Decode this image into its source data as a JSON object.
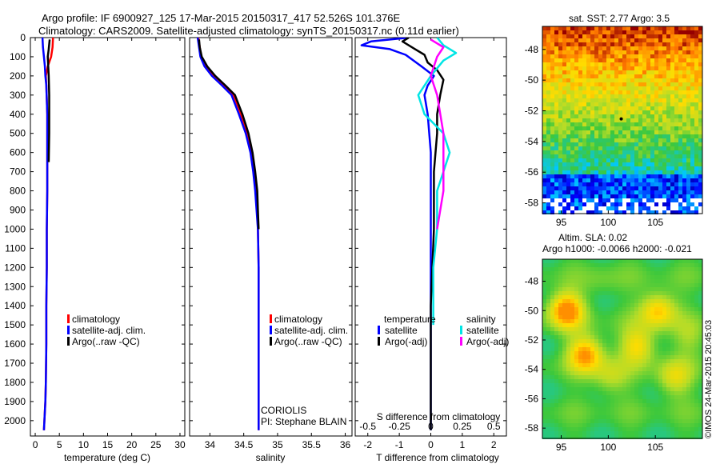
{
  "header": {
    "line1": "Argo profile: IF 6900927_125 17-Mar-2015 20150317_417 52.526S 101.376E",
    "line2": "Climatology: CARS2009. Satellite-adjusted climatology: synTS_20150317.nc (0.11d earlier)"
  },
  "colors": {
    "climatology": "#ff0000",
    "satellite_clim": "#0000ff",
    "argo": "#000000",
    "satellite_sal": "#00e5e5",
    "argo_sal": "#ff00ff"
  },
  "chart_data": [
    {
      "type": "line",
      "name": "temperature-profile",
      "xlabel": "temperature (deg C)",
      "xlim": [
        -1,
        31
      ],
      "xticks": [
        0,
        5,
        10,
        15,
        20,
        25,
        30
      ],
      "ylim": [
        2080,
        0
      ],
      "yticks": [
        0,
        100,
        200,
        300,
        400,
        500,
        600,
        700,
        800,
        900,
        1000,
        1100,
        1200,
        1300,
        1400,
        1500,
        1600,
        1700,
        1800,
        1900,
        2000
      ],
      "legend": [
        "climatology",
        "satellite-adj. clim.",
        "Argo(..raw -QC)"
      ],
      "series": [
        {
          "name": "climatology",
          "color": "#ff0000",
          "x": [
            3.7,
            3.6,
            3.3,
            2.6,
            2.2,
            2.3,
            2.5,
            2.5,
            2.5,
            2.4,
            2.4,
            2.3,
            2.3,
            2.2,
            2.1,
            2.0,
            1.9,
            1.8
          ],
          "y": [
            0,
            50,
            100,
            150,
            200,
            250,
            400,
            600,
            800,
            1000,
            1200,
            1400,
            1600,
            1800,
            1900,
            1950,
            2000,
            2050
          ]
        },
        {
          "name": "satellite-adj. clim.",
          "color": "#0000ff",
          "x": [
            1.5,
            1.6,
            1.8,
            2.0,
            2.1,
            2.3,
            2.5,
            2.5,
            2.5,
            2.4,
            2.4,
            2.3,
            2.3,
            2.2,
            2.1,
            2.0,
            1.9,
            1.8
          ],
          "y": [
            0,
            50,
            100,
            150,
            200,
            250,
            400,
            600,
            800,
            1000,
            1200,
            1400,
            1600,
            1800,
            1900,
            1950,
            2000,
            2050
          ]
        },
        {
          "name": "Argo(..raw -QC)",
          "color": "#000000",
          "x": [
            3.0,
            2.8,
            2.6,
            2.7,
            2.8,
            2.9,
            2.9,
            2.8
          ],
          "y": [
            10,
            60,
            100,
            150,
            200,
            300,
            500,
            650
          ]
        }
      ]
    },
    {
      "type": "line",
      "name": "salinity-profile",
      "xlabel": "salinity",
      "xlim": [
        33.7,
        36.1
      ],
      "xticks": [
        34,
        34.5,
        35,
        35.5,
        36
      ],
      "xtick_labels": [
        "34",
        "34.5",
        "35",
        "35.5",
        "36"
      ],
      "ylim": [
        2080,
        0
      ],
      "legend": [
        "climatology",
        "satellite-adj. clim.",
        "Argo(..raw -QC)"
      ],
      "annotation": [
        "CORIOLIS",
        "PI: Stephane BLAIN"
      ],
      "series": [
        {
          "name": "climatology",
          "color": "#ff0000",
          "x": [
            33.83,
            33.85,
            33.87,
            33.93,
            34.05,
            34.2,
            34.35,
            34.46,
            34.55,
            34.61,
            34.65,
            34.68,
            34.7,
            34.71,
            34.72,
            34.72,
            34.72,
            34.72,
            34.72
          ],
          "y": [
            0,
            50,
            100,
            150,
            200,
            250,
            300,
            400,
            500,
            600,
            700,
            800,
            900,
            1000,
            1200,
            1400,
            1600,
            1800,
            2050
          ]
        },
        {
          "name": "satellite-adj. clim.",
          "color": "#0000ff",
          "x": [
            33.82,
            33.84,
            33.86,
            33.92,
            34.03,
            34.18,
            34.32,
            34.43,
            34.53,
            34.6,
            34.64,
            34.67,
            34.69,
            34.71,
            34.72,
            34.72,
            34.72,
            34.72,
            34.72
          ],
          "y": [
            0,
            50,
            100,
            150,
            200,
            250,
            300,
            400,
            500,
            600,
            700,
            800,
            900,
            1000,
            1200,
            1400,
            1600,
            1800,
            2050
          ]
        },
        {
          "name": "Argo(..raw -QC)",
          "color": "#000000",
          "x": [
            33.84,
            33.85,
            33.88,
            33.96,
            34.08,
            34.23,
            34.37,
            34.48,
            34.57,
            34.63,
            34.67,
            34.7,
            34.71,
            34.72
          ],
          "y": [
            10,
            50,
            100,
            150,
            200,
            250,
            300,
            400,
            500,
            600,
            700,
            800,
            900,
            1000
          ]
        }
      ]
    },
    {
      "type": "line",
      "name": "difference-profile",
      "xlabel": "T difference from climatology",
      "xlabel_top": "S difference from climatology",
      "xlim": [
        -2.4,
        2.4
      ],
      "xticks": [
        -2,
        -1,
        0,
        1,
        2
      ],
      "xticks_s": [
        "-0.5",
        "-0.25",
        "0",
        "0.25",
        "0.5"
      ],
      "ylim": [
        2080,
        0
      ],
      "legend_temperature": [
        "temperature",
        "satellite",
        "Argo(-adj)"
      ],
      "legend_salinity": [
        "salinity",
        "satellite",
        "Argo(-adj)"
      ],
      "series": [
        {
          "name": "temperature satellite",
          "color": "#0000ff",
          "x": [
            -0.7,
            -1.9,
            -2.2,
            -1.3,
            -0.8,
            -0.3,
            0.1,
            -0.1,
            -0.2,
            -0.1,
            0.0,
            0.0,
            0.0,
            0.0,
            0.0
          ],
          "y": [
            0,
            20,
            40,
            60,
            90,
            150,
            200,
            250,
            300,
            400,
            600,
            1000,
            1400,
            1800,
            2050
          ]
        },
        {
          "name": "temperature Argo(-adj)",
          "color": "#000000",
          "x": [
            -0.7,
            -0.9,
            -0.5,
            -0.2,
            -0.1,
            0.2,
            0.4,
            0.3,
            0.2,
            0.2,
            0.1,
            0.1,
            0.0,
            0.0,
            0.0
          ],
          "y": [
            0,
            20,
            60,
            90,
            130,
            170,
            220,
            300,
            400,
            500,
            700,
            1000,
            1400,
            1800,
            2050
          ]
        },
        {
          "name": "salinity satellite",
          "color": "#00e5e5",
          "x": [
            0.05,
            0.1,
            0.2,
            0.1,
            0.0,
            -0.1,
            -0.05,
            0.1,
            0.15,
            0.1,
            0.05,
            0.05,
            0.02,
            0.02
          ],
          "y": [
            0,
            40,
            80,
            120,
            200,
            300,
            400,
            500,
            600,
            700,
            800,
            1000,
            1200,
            1500
          ]
        },
        {
          "name": "salinity Argo(-adj)",
          "color": "#ff00ff",
          "x": [
            0.0,
            0.1,
            0.05,
            0.0,
            0.05,
            0.1,
            0.1,
            0.05
          ],
          "y": [
            10,
            50,
            100,
            200,
            300,
            500,
            800,
            1000
          ]
        }
      ]
    },
    {
      "type": "heatmap",
      "name": "sst-map",
      "title": "sat. SST: 2.77  Argo: 3.5",
      "xticks": [
        95,
        100,
        105
      ],
      "yticks": [
        -48,
        -50,
        -52,
        -54,
        -56,
        -58
      ],
      "xlim": [
        93,
        110
      ],
      "ylim": [
        -58.7,
        -46.5
      ],
      "argo_position": [
        101.376,
        -52.526
      ]
    },
    {
      "type": "heatmap",
      "name": "sla-map",
      "title": "Altim. SLA: 0.02",
      "subtitle": "Argo h1000: -0.0066 h2000: -0.021",
      "xticks": [
        95,
        100,
        105
      ],
      "yticks": [
        -48,
        -50,
        -52,
        -54,
        -56,
        -58
      ],
      "xlim": [
        93,
        110
      ],
      "ylim": [
        -58.7,
        -46.5
      ]
    }
  ],
  "footer": {
    "watermark": "©IMOS 24-Mar-2015 20:45:03"
  }
}
